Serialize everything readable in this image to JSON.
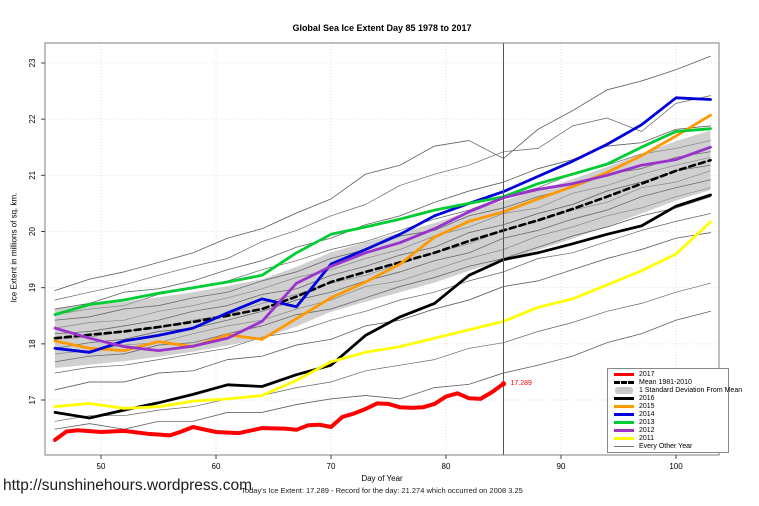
{
  "title": "Global Sea Ice Extent Day 85 1978 to 2017",
  "footer": {
    "url": "http://sunshinehours.wordpress.com",
    "status_line": "Today's Ice Extent: 17.289  - Record for the day: 21.274 which occurred on 2008 3.25"
  },
  "annotation": {
    "label": "17.289",
    "day": 85,
    "value": 17.289,
    "color": "#ff0000"
  },
  "legend": {
    "items": [
      {
        "label": "2017",
        "color": "#ff0000",
        "style": "thick"
      },
      {
        "label": "Mean 1981-2010",
        "color": "#000000",
        "style": "dashed"
      },
      {
        "label": "1 Standard Deviation From Mean",
        "color": "#c8c8c8",
        "style": "band"
      },
      {
        "label": "2016",
        "color": "#000000",
        "style": "thick"
      },
      {
        "label": "2015",
        "color": "#ff9900",
        "style": "thick"
      },
      {
        "label": "2014",
        "color": "#0000dd",
        "style": "thick"
      },
      {
        "label": "2013",
        "color": "#00cc33",
        "style": "thick"
      },
      {
        "label": "2012",
        "color": "#9933cc",
        "style": "thick"
      },
      {
        "label": "2011",
        "color": "#ffff00",
        "style": "thick"
      },
      {
        "label": "Every Other Year",
        "color": "#777777",
        "style": "thin"
      }
    ]
  },
  "chart_data": {
    "type": "line",
    "title": "Global Sea Ice Extent Day 85 1978 to 2017",
    "xlabel": "Day of Year",
    "ylabel": "Ice Extent in millions of sq. km.",
    "x_ticks": [
      50,
      60,
      70,
      80,
      90,
      100
    ],
    "y_ticks": [
      17,
      18,
      19,
      20,
      21,
      22,
      23
    ],
    "xlim": [
      45.2,
      103.8
    ],
    "ylim": [
      16.0,
      23.35
    ],
    "grid": "dotted",
    "vertical_line_day": 85,
    "days": [
      46,
      49,
      52,
      55,
      58,
      61,
      64,
      67,
      70,
      73,
      76,
      79,
      82,
      85,
      88,
      91,
      94,
      97,
      100,
      103
    ],
    "mean_series": {
      "name": "Mean 1981-2010",
      "color": "#000000",
      "dash": "6,4",
      "width": 2.6,
      "values": [
        18.1,
        18.16,
        18.22,
        18.3,
        18.39,
        18.5,
        18.62,
        18.84,
        19.1,
        19.28,
        19.45,
        19.62,
        19.83,
        20.02,
        20.2,
        20.4,
        20.62,
        20.85,
        21.08,
        21.27
      ]
    },
    "band": {
      "name": "1 Standard Deviation From Mean",
      "color": "#aaaaaa",
      "opacity": 0.55,
      "half_width": 0.53
    },
    "series": [
      {
        "name": "2016",
        "color": "#000000",
        "width": 2.8,
        "values": [
          16.78,
          16.68,
          16.82,
          16.95,
          17.1,
          17.27,
          17.24,
          17.45,
          17.62,
          18.15,
          18.48,
          18.72,
          19.22,
          19.5,
          19.62,
          19.78,
          19.95,
          20.1,
          20.45,
          20.65
        ]
      },
      {
        "name": "2015",
        "color": "#ff9900",
        "width": 2.8,
        "values": [
          18.05,
          17.92,
          17.88,
          18.04,
          17.95,
          18.16,
          18.08,
          18.45,
          18.82,
          19.1,
          19.42,
          19.9,
          20.18,
          20.35,
          20.58,
          20.8,
          21.05,
          21.35,
          21.7,
          22.07
        ]
      },
      {
        "name": "2014",
        "color": "#0000dd",
        "width": 2.8,
        "values": [
          17.92,
          17.85,
          18.05,
          18.15,
          18.28,
          18.55,
          18.8,
          18.66,
          19.42,
          19.68,
          19.95,
          20.28,
          20.5,
          20.71,
          20.98,
          21.25,
          21.55,
          21.9,
          22.38,
          22.35
        ]
      },
      {
        "name": "2013",
        "color": "#00cc33",
        "width": 2.8,
        "values": [
          18.52,
          18.7,
          18.78,
          18.9,
          19.0,
          19.1,
          19.22,
          19.62,
          19.95,
          20.08,
          20.22,
          20.38,
          20.5,
          20.62,
          20.85,
          21.02,
          21.2,
          21.5,
          21.78,
          21.83
        ]
      },
      {
        "name": "2012",
        "color": "#9933cc",
        "width": 2.8,
        "values": [
          18.28,
          18.1,
          17.95,
          17.88,
          17.96,
          18.1,
          18.4,
          19.08,
          19.38,
          19.62,
          19.8,
          20.05,
          20.35,
          20.6,
          20.75,
          20.85,
          21.0,
          21.18,
          21.28,
          21.5
        ]
      },
      {
        "name": "2011",
        "color": "#ffff00",
        "width": 2.8,
        "values": [
          16.88,
          16.94,
          16.85,
          16.88,
          16.98,
          17.02,
          17.08,
          17.35,
          17.68,
          17.85,
          17.95,
          18.1,
          18.25,
          18.4,
          18.65,
          18.8,
          19.05,
          19.3,
          19.6,
          20.17
        ]
      }
    ],
    "current_year_series": {
      "name": "2017",
      "color": "#ff0000",
      "width": 4,
      "days": [
        46,
        47,
        48,
        50,
        52,
        54,
        56,
        57,
        58,
        60,
        62,
        64,
        66,
        67,
        68,
        69,
        70,
        71,
        72,
        73,
        74,
        75,
        76,
        77,
        78,
        79,
        80,
        81,
        82,
        83,
        84,
        85
      ],
      "values": [
        16.29,
        16.44,
        16.46,
        16.43,
        16.45,
        16.4,
        16.37,
        16.44,
        16.52,
        16.43,
        16.41,
        16.5,
        16.49,
        16.47,
        16.55,
        16.56,
        16.52,
        16.7,
        16.76,
        16.84,
        16.94,
        16.93,
        16.87,
        16.86,
        16.87,
        16.93,
        17.06,
        17.12,
        17.03,
        17.02,
        17.14,
        17.289
      ]
    },
    "background_years": {
      "name": "Every Other Year",
      "color": "#666666",
      "width": 0.7,
      "lines": [
        [
          18.95,
          19.15,
          19.28,
          19.45,
          19.62,
          19.88,
          20.05,
          20.33,
          20.58,
          21.02,
          21.18,
          21.52,
          21.62,
          21.3,
          21.82,
          22.15,
          22.52,
          22.68,
          22.88,
          23.12
        ],
        [
          18.78,
          18.92,
          19.05,
          19.22,
          19.38,
          19.52,
          19.82,
          20.02,
          20.28,
          20.48,
          20.82,
          21.02,
          21.18,
          21.42,
          21.48,
          21.88,
          22.02,
          21.78,
          22.28,
          22.42
        ],
        [
          18.62,
          18.72,
          18.92,
          18.98,
          19.12,
          19.32,
          19.48,
          19.72,
          19.88,
          20.12,
          20.28,
          20.52,
          20.72,
          20.88,
          21.12,
          21.28,
          21.52,
          21.58,
          21.82,
          21.88
        ],
        [
          18.52,
          18.62,
          18.68,
          18.88,
          18.98,
          19.12,
          19.32,
          19.48,
          19.68,
          19.82,
          20.02,
          20.22,
          20.38,
          20.62,
          20.78,
          21.02,
          21.18,
          21.38,
          21.48,
          21.62
        ],
        [
          18.42,
          18.48,
          18.62,
          18.68,
          18.82,
          18.92,
          19.12,
          19.28,
          19.52,
          19.68,
          19.92,
          20.02,
          20.28,
          20.42,
          20.62,
          20.78,
          21.02,
          21.12,
          21.32,
          21.42
        ],
        [
          18.28,
          18.38,
          18.42,
          18.58,
          18.68,
          18.82,
          18.98,
          19.18,
          19.32,
          19.52,
          19.68,
          19.92,
          20.08,
          20.32,
          20.42,
          20.68,
          20.82,
          21.02,
          21.18,
          21.32
        ],
        [
          18.18,
          18.22,
          18.32,
          18.42,
          18.58,
          18.68,
          18.88,
          18.98,
          19.22,
          19.38,
          19.58,
          19.72,
          19.98,
          20.12,
          20.32,
          20.48,
          20.72,
          20.88,
          21.08,
          21.18
        ],
        [
          18.08,
          18.12,
          18.22,
          18.28,
          18.42,
          18.52,
          18.72,
          18.88,
          19.08,
          19.22,
          19.42,
          19.62,
          19.78,
          20.02,
          20.18,
          20.38,
          20.52,
          20.78,
          20.88,
          21.08
        ],
        [
          17.92,
          18.02,
          18.08,
          18.22,
          18.28,
          18.42,
          18.58,
          18.78,
          18.92,
          19.12,
          19.28,
          19.48,
          19.62,
          19.88,
          20.02,
          20.22,
          20.38,
          20.62,
          20.78,
          20.92
        ],
        [
          17.82,
          17.88,
          17.98,
          18.02,
          18.18,
          18.32,
          18.42,
          18.62,
          18.78,
          19.02,
          19.12,
          19.32,
          19.52,
          19.68,
          19.92,
          20.08,
          20.28,
          20.42,
          20.62,
          20.78
        ],
        [
          17.68,
          17.78,
          17.82,
          17.98,
          18.02,
          18.18,
          18.32,
          18.52,
          18.62,
          18.82,
          19.02,
          19.18,
          19.38,
          19.52,
          19.72,
          19.92,
          20.08,
          20.28,
          20.42,
          20.62
        ],
        [
          17.48,
          17.58,
          17.62,
          17.72,
          17.82,
          17.92,
          18.12,
          18.22,
          18.42,
          18.58,
          18.78,
          18.92,
          19.12,
          19.28,
          19.52,
          19.62,
          19.82,
          20.02,
          20.18,
          20.32
        ],
        [
          17.18,
          17.32,
          17.32,
          17.48,
          17.52,
          17.72,
          17.78,
          17.98,
          18.08,
          18.32,
          18.42,
          18.62,
          18.78,
          19.02,
          19.12,
          19.32,
          19.52,
          19.68,
          19.88,
          19.98
        ],
        [
          16.62,
          16.72,
          16.72,
          16.82,
          16.88,
          17.02,
          17.08,
          17.22,
          17.32,
          17.52,
          17.62,
          17.72,
          17.92,
          18.02,
          18.22,
          18.38,
          18.58,
          18.72,
          18.92,
          19.08
        ],
        [
          16.48,
          16.58,
          16.48,
          16.62,
          16.62,
          16.78,
          16.78,
          16.92,
          17.02,
          17.08,
          17.02,
          17.22,
          17.28,
          17.48,
          17.62,
          17.78,
          18.02,
          18.18,
          18.42,
          18.58
        ]
      ]
    }
  }
}
